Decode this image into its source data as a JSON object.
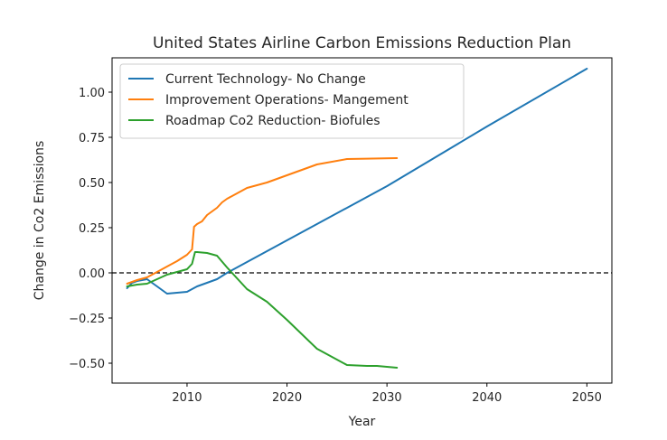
{
  "chart_data": {
    "type": "line",
    "title": "United States Airline Carbon Emissions Reduction Plan",
    "xlabel": "Year",
    "ylabel": "Change in Co2 Emissions",
    "xlim": [
      2002.5,
      2052.5
    ],
    "ylim": [
      -0.61,
      1.19
    ],
    "xticks": [
      2010,
      2020,
      2030,
      2040,
      2050
    ],
    "yticks": [
      -0.5,
      -0.25,
      0.0,
      0.25,
      0.5,
      0.75,
      1.0
    ],
    "ytick_labels": [
      "−0.50",
      "−0.25",
      "0.00",
      "0.25",
      "0.50",
      "0.75",
      "1.00"
    ],
    "grid": false,
    "legend_position": "upper-left",
    "reference_line": {
      "y": 0.0,
      "style": "dashed",
      "color": "#000000"
    },
    "series": [
      {
        "name": "Current Technology- No Change",
        "color": "#1f77b4",
        "x": [
          2004,
          2004.5,
          2005,
          2006,
          2007,
          2008,
          2009,
          2010,
          2011,
          2012,
          2013,
          2014,
          2016,
          2020,
          2030,
          2040,
          2050
        ],
        "y": [
          -0.085,
          -0.055,
          -0.045,
          -0.035,
          -0.075,
          -0.115,
          -0.11,
          -0.105,
          -0.075,
          -0.055,
          -0.035,
          0.0,
          0.06,
          0.18,
          0.48,
          0.81,
          1.13
        ]
      },
      {
        "name": "Improvement Operations- Mangement",
        "color": "#ff7f0e",
        "x": [
          2004,
          2005,
          2006,
          2007,
          2008,
          2009,
          2010,
          2010.5,
          2010.7,
          2011,
          2011.5,
          2012,
          2013,
          2013.5,
          2014,
          2015,
          2016,
          2018,
          2020,
          2023,
          2026,
          2028,
          2031
        ],
        "y": [
          -0.06,
          -0.04,
          -0.025,
          0.005,
          0.035,
          0.065,
          0.1,
          0.13,
          0.255,
          0.27,
          0.285,
          0.32,
          0.36,
          0.39,
          0.41,
          0.44,
          0.47,
          0.5,
          0.54,
          0.6,
          0.63,
          0.632,
          0.635
        ]
      },
      {
        "name": "Roadmap Co2 Reduction- Biofules",
        "color": "#2ca02c",
        "x": [
          2004,
          2005,
          2006,
          2007,
          2008,
          2009,
          2010,
          2010.5,
          2010.8,
          2011,
          2012,
          2013,
          2014,
          2016,
          2018,
          2020,
          2023,
          2026,
          2028,
          2029,
          2031
        ],
        "y": [
          -0.075,
          -0.065,
          -0.06,
          -0.035,
          -0.01,
          0.005,
          0.02,
          0.05,
          0.115,
          0.115,
          0.11,
          0.095,
          0.03,
          -0.09,
          -0.16,
          -0.26,
          -0.42,
          -0.51,
          -0.515,
          -0.515,
          -0.525
        ]
      }
    ]
  }
}
